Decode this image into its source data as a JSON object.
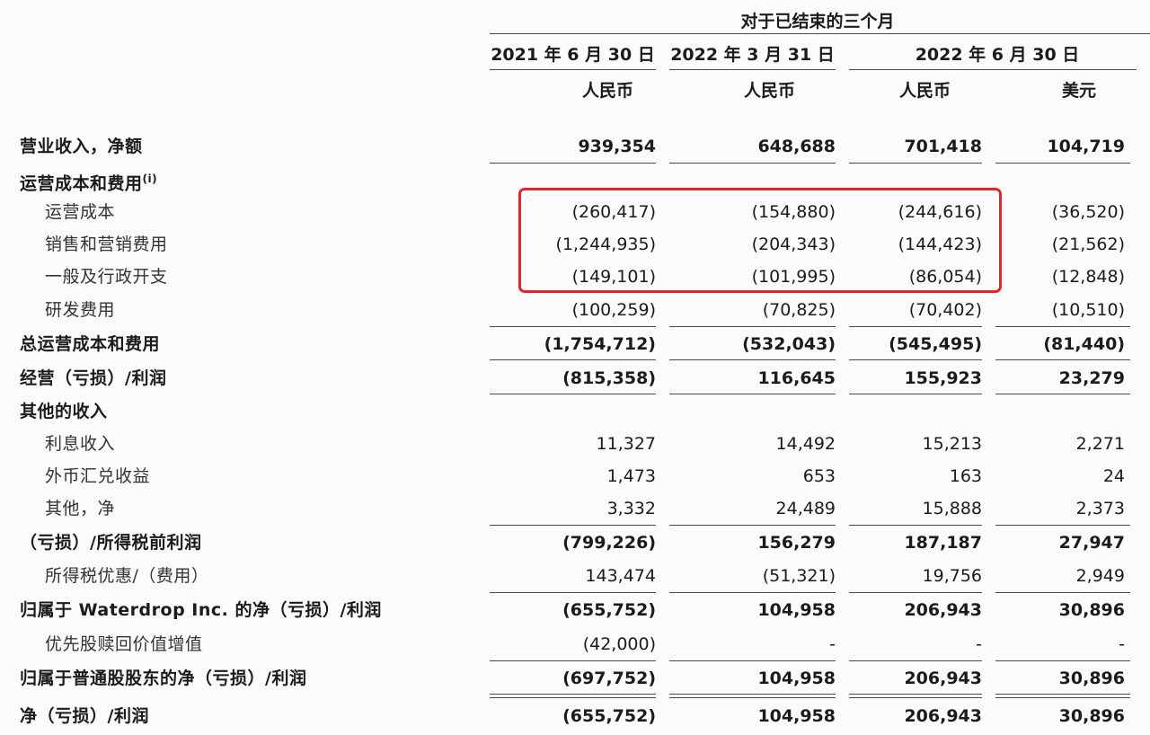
{
  "period_title": "对于已结束的三个月",
  "columns": [
    {
      "date": "2021 年 6 月 30 日",
      "currency": "人民币"
    },
    {
      "date": "2022 年 3 月 31 日",
      "currency": "人民币"
    },
    {
      "date": "2022 年 6 月 30 日",
      "currency": "人民币"
    },
    {
      "date": "",
      "currency": "美元"
    }
  ],
  "rows": [
    {
      "label": "营业收入，净额",
      "values": [
        "939,354",
        "648,688",
        "701,418",
        "104,719"
      ]
    },
    {
      "label": "运营成本和费用",
      "note": "(i)",
      "values": []
    },
    {
      "label": "运营成本",
      "values": [
        "(260,417)",
        "(154,880)",
        "(244,616)",
        "(36,520)"
      ]
    },
    {
      "label": "销售和营销费用",
      "values": [
        "(1,244,935)",
        "(204,343)",
        "(144,423)",
        "(21,562)"
      ]
    },
    {
      "label": "一般及行政开支",
      "values": [
        "(149,101)",
        "(101,995)",
        "(86,054)",
        "(12,848)"
      ]
    },
    {
      "label": "研发费用",
      "values": [
        "(100,259)",
        "(70,825)",
        "(70,402)",
        "(10,510)"
      ]
    },
    {
      "label": "总运营成本和费用",
      "values": [
        "(1,754,712)",
        "(532,043)",
        "(545,495)",
        "(81,440)"
      ]
    },
    {
      "label": "经营（亏损）/利润",
      "values": [
        "(815,358)",
        "116,645",
        "155,923",
        "23,279"
      ]
    },
    {
      "label": "其他的收入",
      "values": []
    },
    {
      "label": "利息收入",
      "values": [
        "11,327",
        "14,492",
        "15,213",
        "2,271"
      ]
    },
    {
      "label": "外币汇兑收益",
      "values": [
        "1,473",
        "653",
        "163",
        "24"
      ]
    },
    {
      "label": "其他，净",
      "values": [
        "3,332",
        "24,489",
        "15,888",
        "2,373"
      ]
    },
    {
      "label": "（亏损）/所得税前利润",
      "values": [
        "(799,226)",
        "156,279",
        "187,187",
        "27,947"
      ]
    },
    {
      "label": "所得税优惠/（费用）",
      "values": [
        "143,474",
        "(51,321)",
        "19,756",
        "2,949"
      ]
    },
    {
      "label": "归属于 Waterdrop Inc. 的净（亏损）/利润",
      "values": [
        "(655,752)",
        "104,958",
        "206,943",
        "30,896"
      ]
    },
    {
      "label": "优先股赎回价值增值",
      "values": [
        "(42,000)",
        "-",
        "-",
        "-"
      ]
    },
    {
      "label": "归属于普通股股东的净（亏损）/利润",
      "values": [
        "(697,752)",
        "104,958",
        "206,943",
        "30,896"
      ]
    },
    {
      "label": "净（亏损）/利润",
      "values": [
        "(655,752)",
        "104,958",
        "206,943",
        "30,896"
      ]
    }
  ],
  "colors": {
    "highlight_box": "#e0262a"
  }
}
